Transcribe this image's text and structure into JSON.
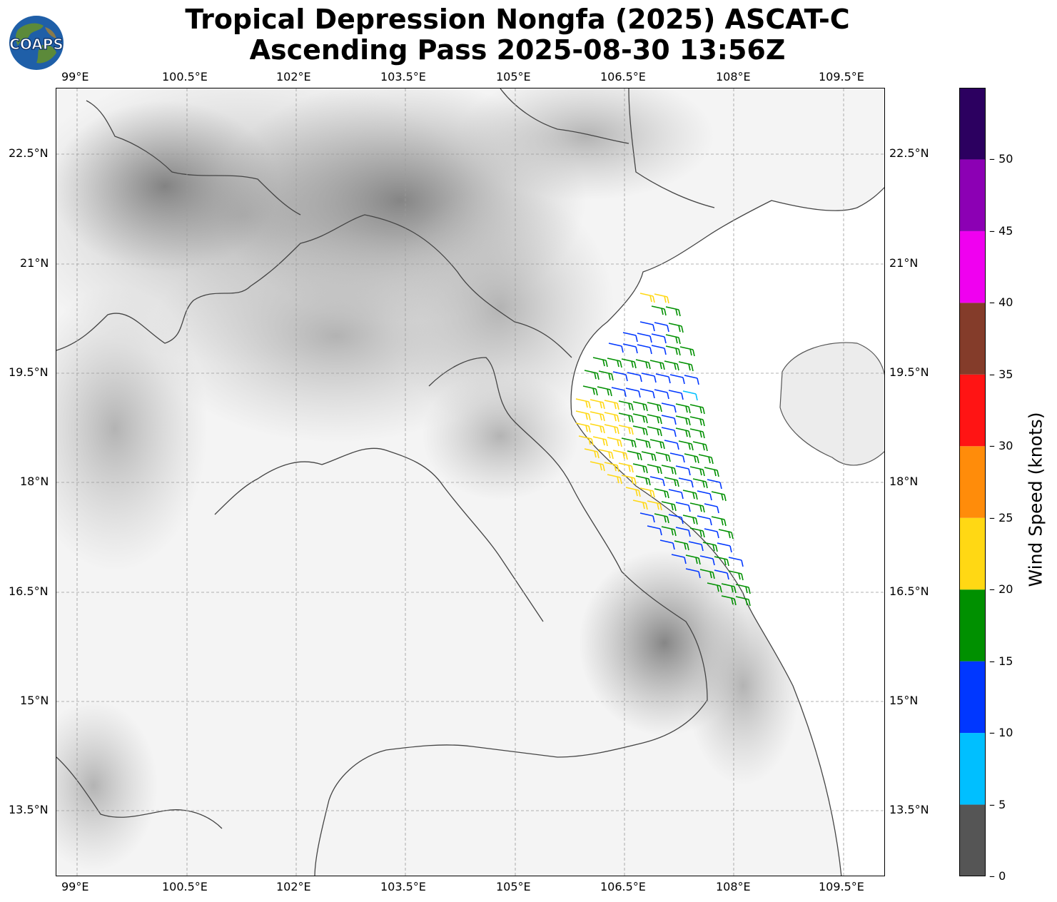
{
  "title": {
    "line1": "Tropical Depression Nongfa (2025) ASCAT-C",
    "line2": "Ascending Pass 2025-08-30 13:56Z"
  },
  "logo": {
    "text": "COAPS",
    "icon": "globe-logo"
  },
  "map": {
    "lon_ticks": [
      "99°E",
      "100.5°E",
      "102°E",
      "103.5°E",
      "105°E",
      "106.5°E",
      "108°E",
      "109.5°E"
    ],
    "lat_ticks": [
      "22.5°N",
      "21°N",
      "19.5°N",
      "18°N",
      "16.5°N",
      "15°N",
      "13.5°N"
    ],
    "lon_range": [
      98.7,
      110.05
    ],
    "lat_range": [
      12.6,
      23.4
    ],
    "gridlines": true,
    "background": "grayscale terrain"
  },
  "colorbar": {
    "label": "Wind Speed (knots)",
    "ticks": [
      "0",
      "5",
      "10",
      "15",
      "20",
      "25",
      "30",
      "35",
      "40",
      "45",
      "50"
    ],
    "bins": [
      {
        "from": 0,
        "to": 5,
        "color": "#555555"
      },
      {
        "from": 5,
        "to": 10,
        "color": "#00bfff"
      },
      {
        "from": 10,
        "to": 15,
        "color": "#0037ff"
      },
      {
        "from": 15,
        "to": 20,
        "color": "#009000"
      },
      {
        "from": 20,
        "to": 25,
        "color": "#ffd814"
      },
      {
        "from": 25,
        "to": 30,
        "color": "#ff8c0a"
      },
      {
        "from": 30,
        "to": 35,
        "color": "#ff1414"
      },
      {
        "from": 35,
        "to": 40,
        "color": "#843c2a"
      },
      {
        "from": 40,
        "to": 45,
        "color": "#f000f0"
      },
      {
        "from": 45,
        "to": 50,
        "color": "#8c00b4"
      },
      {
        "from": 50,
        "to": 55,
        "color": "#2c0060"
      }
    ]
  },
  "wind_barbs_speed_colors": {
    "calm": "#00bfff",
    "light": "#0037ff",
    "moderate": "#009000",
    "strong": "#ffd814"
  }
}
